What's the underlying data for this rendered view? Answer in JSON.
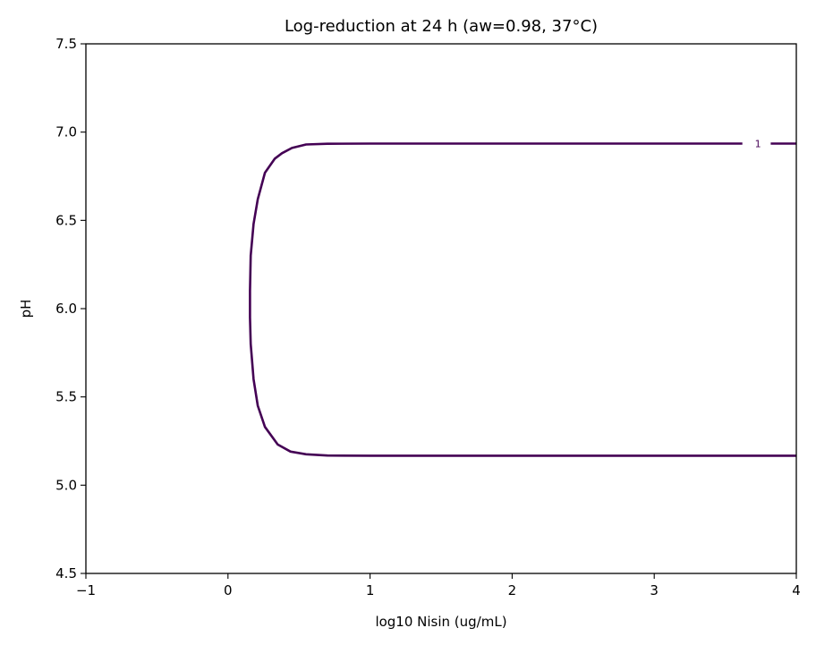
{
  "chart_data": {
    "type": "line",
    "title": "Log-reduction at 24 h (aw=0.98, 37°C)",
    "xlabel": "log10 Nisin (ug/mL)",
    "ylabel": "pH",
    "xlim": [
      -1,
      4
    ],
    "ylim": [
      4.5,
      7.5
    ],
    "x_ticks": [
      -1,
      0,
      1,
      2,
      3,
      4
    ],
    "x_tick_labels": [
      "−1",
      "0",
      "1",
      "2",
      "3",
      "4"
    ],
    "y_ticks": [
      4.5,
      5.0,
      5.5,
      6.0,
      6.5,
      7.0,
      7.5
    ],
    "y_tick_labels": [
      "4.5",
      "5.0",
      "5.5",
      "6.0",
      "6.5",
      "7.0",
      "7.5"
    ],
    "grid": false,
    "series": [
      {
        "level_label": "1",
        "color": "#440154",
        "label_position": [
          3.73,
          6.935
        ],
        "points": [
          [
            4.0,
            6.935
          ],
          [
            3.82,
            6.935
          ],
          [
            3.62,
            6.935
          ],
          [
            2.0,
            6.935
          ],
          [
            1.0,
            6.935
          ],
          [
            0.7,
            6.934
          ],
          [
            0.55,
            6.93
          ],
          [
            0.45,
            6.91
          ],
          [
            0.38,
            6.88
          ],
          [
            0.33,
            6.85
          ],
          [
            0.26,
            6.77
          ],
          [
            0.21,
            6.62
          ],
          [
            0.18,
            6.48
          ],
          [
            0.16,
            6.3
          ],
          [
            0.155,
            6.1
          ],
          [
            0.155,
            5.95
          ],
          [
            0.16,
            5.8
          ],
          [
            0.18,
            5.6
          ],
          [
            0.21,
            5.45
          ],
          [
            0.26,
            5.33
          ],
          [
            0.35,
            5.23
          ],
          [
            0.44,
            5.19
          ],
          [
            0.55,
            5.175
          ],
          [
            0.7,
            5.168
          ],
          [
            1.0,
            5.167
          ],
          [
            2.0,
            5.167
          ],
          [
            3.0,
            5.167
          ],
          [
            4.0,
            5.167
          ]
        ]
      }
    ]
  }
}
